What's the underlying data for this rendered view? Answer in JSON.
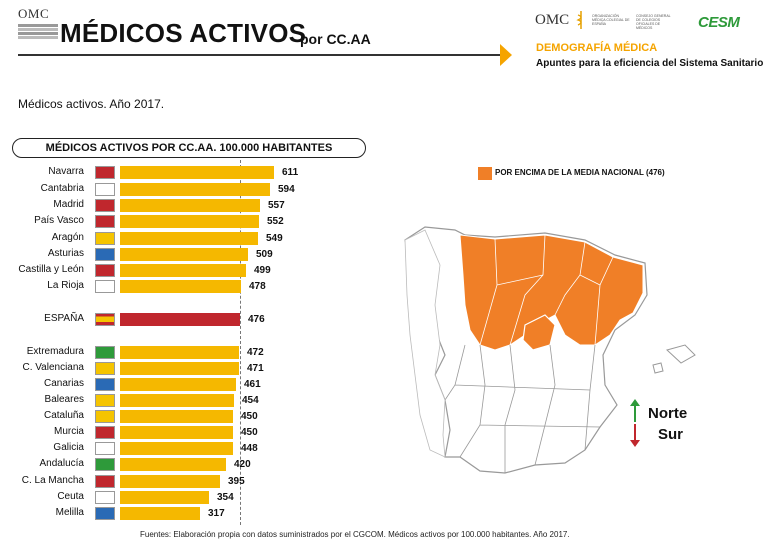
{
  "header": {
    "omc_logo_text": "OMC",
    "title": "MÉDICOS ACTIVOS",
    "title_suffix": "por CC.AA",
    "omc_right_text": "OMC",
    "org_text_1": "ORGANIZACIÓN MÉDICA COLEGIAL DE ESPAÑA",
    "org_text_2": "CONSEJO GENERAL DE COLEGIOS OFICIALES DE MÉDICOS",
    "cesm_logo": "CESM",
    "section": "DEMOGRAFÍA MÉDICA",
    "subsection": "Apuntes para la eficiencia del Sistema Sanitario",
    "accent": "#f5a400"
  },
  "page_title": "Médicos activos. Año 2017.",
  "chart_data": {
    "type": "bar",
    "title": "MÉDICOS ACTIVOS POR CC.AA. 100.000 HABITANTES",
    "orientation": "horizontal",
    "reference_value": 476,
    "categories": [
      "Navarra",
      "Cantabria",
      "Madrid",
      "País Vasco",
      "Aragón",
      "Asturias",
      "Castilla y León",
      "La Rioja",
      "ESPAÑA",
      "Extremadura",
      "C. Valenciana",
      "Canarias",
      "Baleares",
      "Cataluña",
      "Murcia",
      "Galicia",
      "Andalucía",
      "C. La Mancha",
      "Ceuta",
      "Melilla"
    ],
    "values": [
      611,
      594,
      557,
      552,
      549,
      509,
      499,
      478,
      476,
      472,
      471,
      461,
      454,
      450,
      450,
      448,
      420,
      395,
      354,
      317
    ],
    "bar_color": "#f5b800",
    "national_bar_color": "#c0272d"
  },
  "map": {
    "legend_label": "POR ENCIMA DE LA MEDIA NACIONAL (476)",
    "highlight_color": "#f07f27",
    "north_label": "Norte",
    "south_label": "Sur",
    "north_arrow_color": "#2e9a3a",
    "south_arrow_color": "#c0272d"
  },
  "footer": "Fuentes: Elaboración propia con datos suministrados por el CGCOM. Médicos activos por 100.000 habitantes. Año 2017."
}
